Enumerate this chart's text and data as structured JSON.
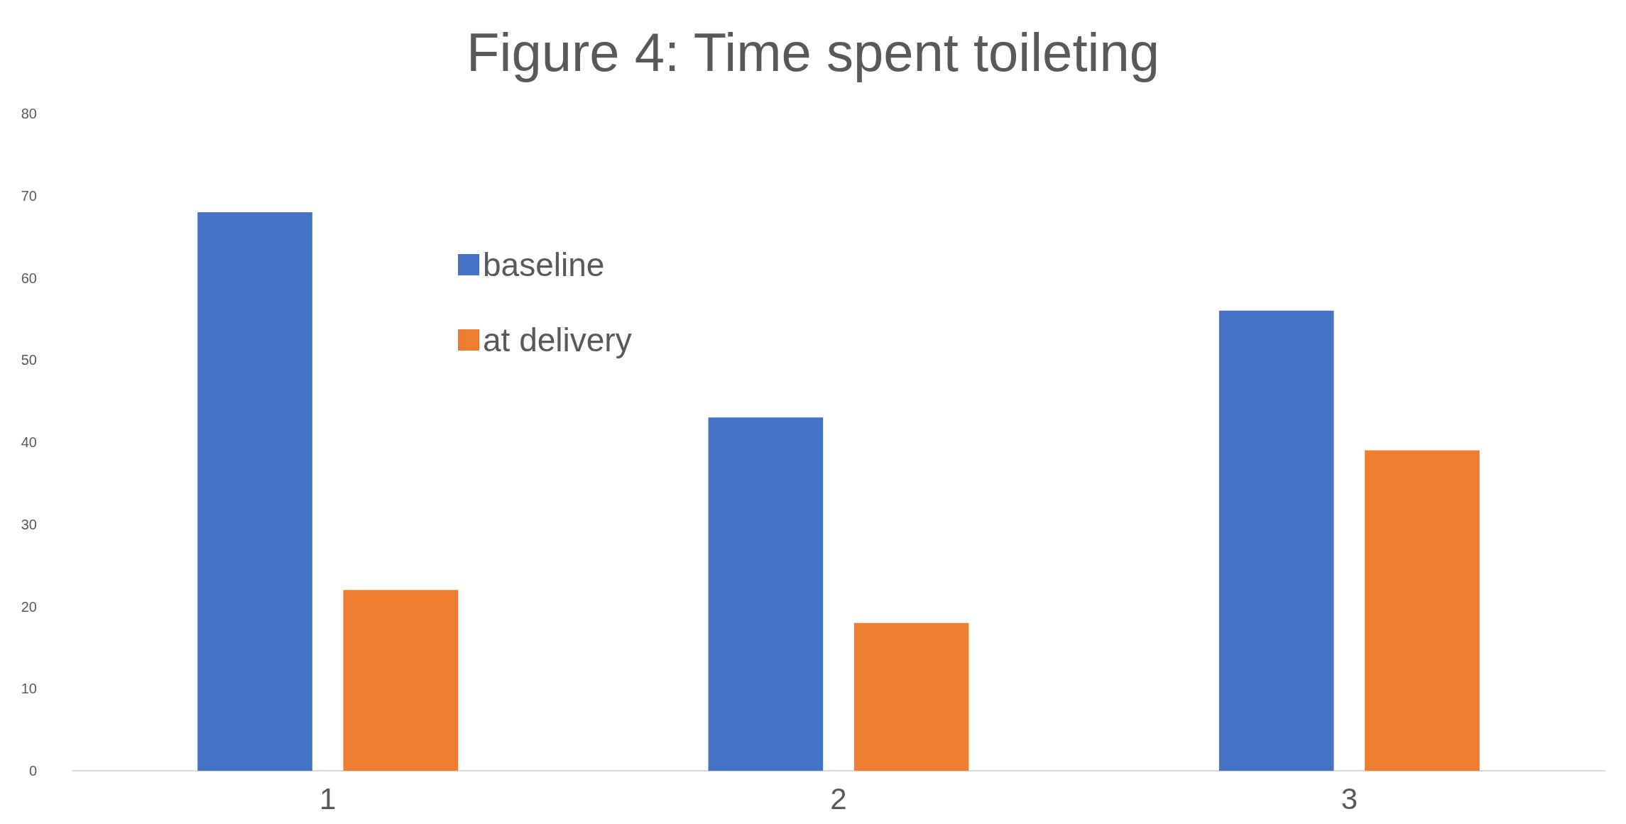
{
  "chart_data": {
    "type": "bar",
    "title": "Figure 4: Time spent toileting",
    "categories": [
      "1",
      "2",
      "3"
    ],
    "series": [
      {
        "name": "baseline",
        "color": "#4472c4",
        "values": [
          68,
          43,
          56
        ]
      },
      {
        "name": "at delivery",
        "color": "#ed7d31",
        "values": [
          22,
          18,
          39
        ]
      }
    ],
    "ylim": [
      0,
      80
    ],
    "yticks": [
      0,
      10,
      20,
      30,
      40,
      50,
      60,
      70,
      80
    ],
    "grid": false,
    "legend": "top left"
  }
}
